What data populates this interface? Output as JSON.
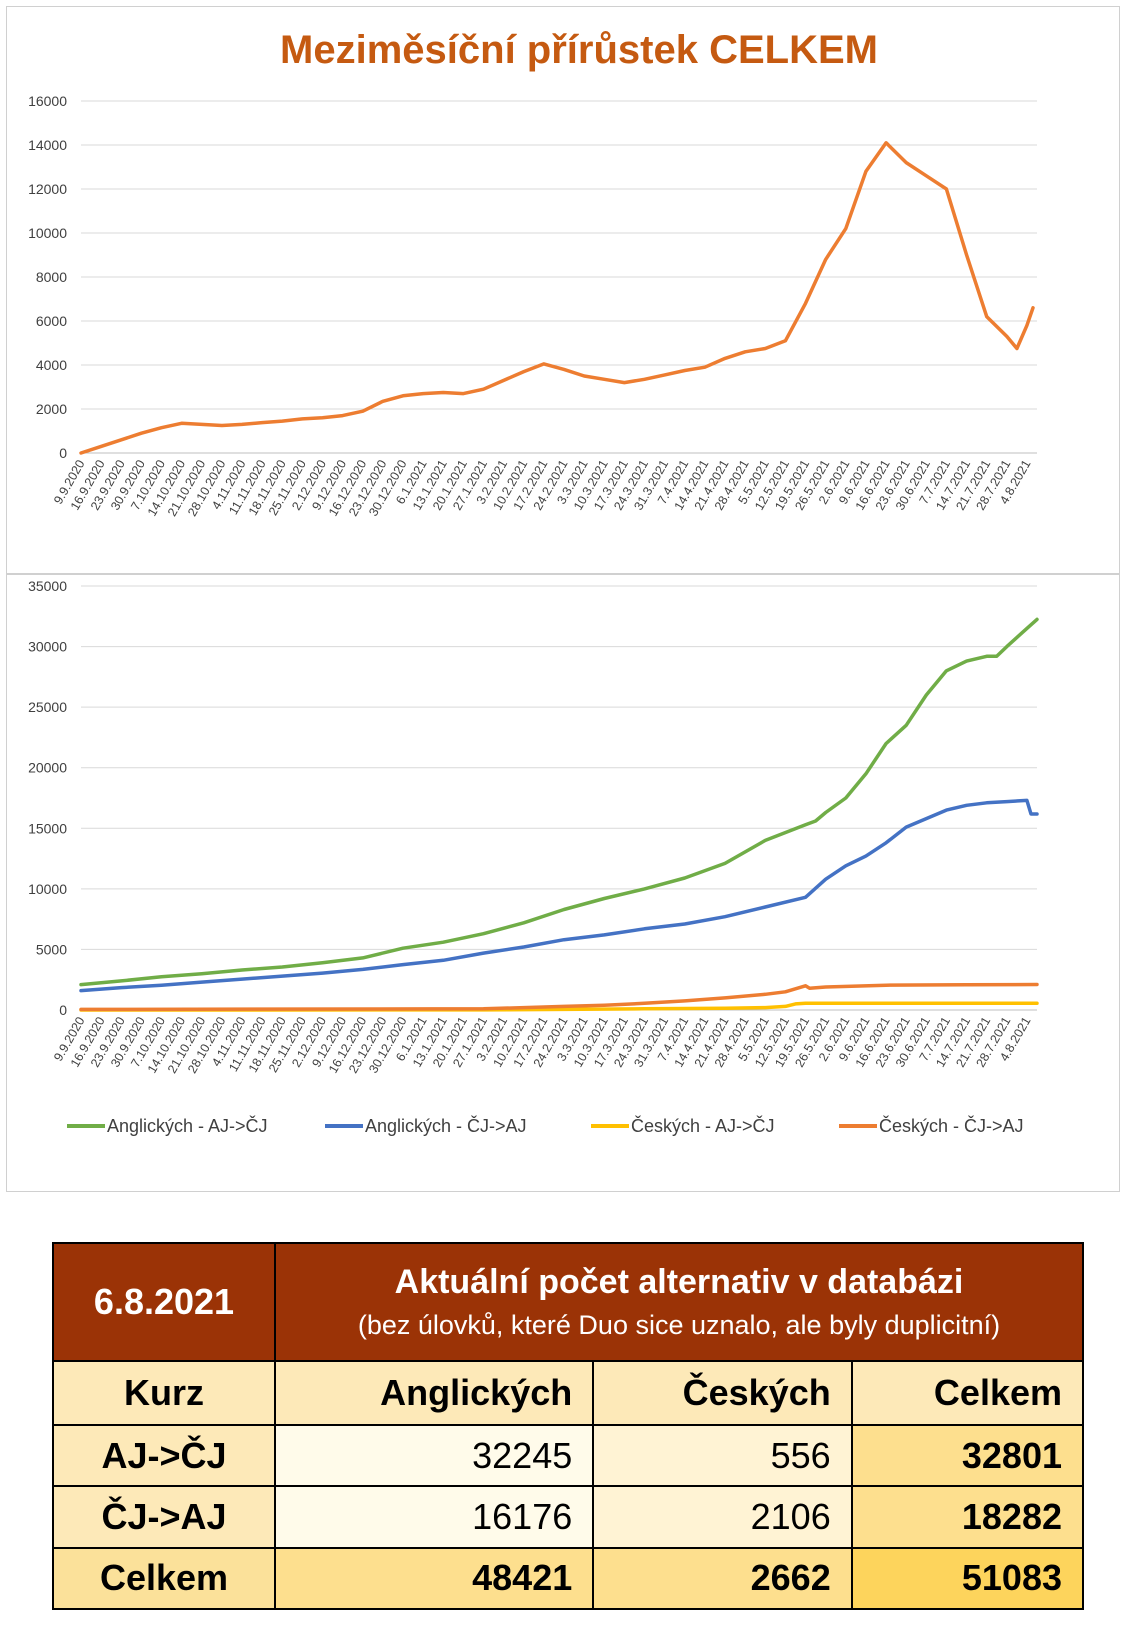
{
  "chart_data": [
    {
      "type": "line",
      "title": "Meziměsíční přírůstek CELKEM",
      "ylim": [
        0,
        16000
      ],
      "yticks": [
        0,
        2000,
        4000,
        6000,
        8000,
        10000,
        12000,
        14000,
        16000
      ],
      "grid": true,
      "x_tick_labels": [
        "9.9.2020",
        "16.9.2020",
        "23.9.2020",
        "30.9.2020",
        "7.10.2020",
        "14.10.2020",
        "21.10.2020",
        "28.10.2020",
        "4.11.2020",
        "11.11.2020",
        "18.11.2020",
        "25.11.2020",
        "2.12.2020",
        "9.12.2020",
        "16.12.2020",
        "23.12.2020",
        "30.12.2020",
        "6.1.2021",
        "13.1.2021",
        "20.1.2021",
        "27.1.2021",
        "3.2.2021",
        "10.2.2021",
        "17.2.2021",
        "24.2.2021",
        "3.3.2021",
        "10.3.2021",
        "17.3.2021",
        "24.3.2021",
        "31.3.2021",
        "7.4.2021",
        "14.4.2021",
        "21.4.2021",
        "28.4.2021",
        "5.5.2021",
        "12.5.2021",
        "19.5.2021",
        "26.5.2021",
        "2.6.2021",
        "9.6.2021",
        "16.6.2021",
        "23.6.2021",
        "30.6.2021",
        "7.7.2021",
        "14.7.2021",
        "21.7.2021",
        "28.7.2021",
        "4.8.2021"
      ],
      "series": [
        {
          "color": "#ed7d31",
          "points": [
            [
              0,
              0
            ],
            [
              1,
              300
            ],
            [
              2,
              600
            ],
            [
              3,
              900
            ],
            [
              4,
              1150
            ],
            [
              5,
              1350
            ],
            [
              6,
              1300
            ],
            [
              7,
              1250
            ],
            [
              8,
              1300
            ],
            [
              9,
              1380
            ],
            [
              10,
              1450
            ],
            [
              11,
              1550
            ],
            [
              12,
              1600
            ],
            [
              13,
              1700
            ],
            [
              14,
              1900
            ],
            [
              15,
              2350
            ],
            [
              16,
              2600
            ],
            [
              17,
              2700
            ],
            [
              18,
              2750
            ],
            [
              19,
              2700
            ],
            [
              20,
              2900
            ],
            [
              21,
              3300
            ],
            [
              22,
              3700
            ],
            [
              23,
              4050
            ],
            [
              24,
              3800
            ],
            [
              25,
              3500
            ],
            [
              26,
              3350
            ],
            [
              27,
              3200
            ],
            [
              28,
              3350
            ],
            [
              29,
              3550
            ],
            [
              30,
              3750
            ],
            [
              31,
              3900
            ],
            [
              32,
              4300
            ],
            [
              33,
              4600
            ],
            [
              34,
              4750
            ],
            [
              35,
              5100
            ],
            [
              36,
              6800
            ],
            [
              37,
              8800
            ],
            [
              38,
              10200
            ],
            [
              39,
              12800
            ],
            [
              40,
              14100
            ],
            [
              41,
              13200
            ],
            [
              42,
              12600
            ],
            [
              43,
              12000
            ],
            [
              44,
              9000
            ],
            [
              45,
              6200
            ],
            [
              46,
              5300
            ],
            [
              46.5,
              4750
            ],
            [
              47,
              5800
            ],
            [
              47.3,
              6600
            ]
          ]
        }
      ]
    },
    {
      "type": "line",
      "ylim": [
        0,
        35000
      ],
      "yticks": [
        0,
        5000,
        10000,
        15000,
        20000,
        25000,
        30000,
        35000
      ],
      "grid": true,
      "legend_position": "bottom",
      "x_tick_labels": [
        "9.9.2020",
        "16.9.2020",
        "23.9.2020",
        "30.9.2020",
        "7.10.2020",
        "14.10.2020",
        "21.10.2020",
        "28.10.2020",
        "4.11.2020",
        "11.11.2020",
        "18.11.2020",
        "25.11.2020",
        "2.12.2020",
        "9.12.2020",
        "16.12.2020",
        "23.12.2020",
        "30.12.2020",
        "6.1.2021",
        "13.1.2021",
        "20.1.2021",
        "27.1.2021",
        "3.2.2021",
        "10.2.2021",
        "17.2.2021",
        "24.2.2021",
        "3.3.2021",
        "10.3.2021",
        "17.3.2021",
        "24.3.2021",
        "31.3.2021",
        "7.4.2021",
        "14.4.2021",
        "21.4.2021",
        "28.4.2021",
        "5.5.2021",
        "12.5.2021",
        "19.5.2021",
        "26.5.2021",
        "2.6.2021",
        "9.6.2021",
        "16.6.2021",
        "23.6.2021",
        "30.6.2021",
        "7.7.2021",
        "14.7.2021",
        "21.7.2021",
        "28.7.2021",
        "4.8.2021"
      ],
      "series": [
        {
          "name": "Anglických - AJ->ČJ",
          "color": "#70ad47",
          "points": [
            [
              0,
              2100
            ],
            [
              2,
              2400
            ],
            [
              4,
              2750
            ],
            [
              6,
              3000
            ],
            [
              8,
              3300
            ],
            [
              10,
              3550
            ],
            [
              12,
              3900
            ],
            [
              14,
              4300
            ],
            [
              16,
              5100
            ],
            [
              18,
              5600
            ],
            [
              20,
              6300
            ],
            [
              22,
              7200
            ],
            [
              24,
              8300
            ],
            [
              26,
              9200
            ],
            [
              28,
              10000
            ],
            [
              30,
              10900
            ],
            [
              32,
              12100
            ],
            [
              34,
              14000
            ],
            [
              36,
              15300
            ],
            [
              36.5,
              15600
            ],
            [
              37,
              16300
            ],
            [
              38,
              17500
            ],
            [
              39,
              19500
            ],
            [
              40,
              22000
            ],
            [
              41,
              23500
            ],
            [
              42,
              26000
            ],
            [
              43,
              28000
            ],
            [
              44,
              28800
            ],
            [
              45,
              29200
            ],
            [
              45.5,
              29200
            ],
            [
              46,
              30000
            ],
            [
              47,
              31500
            ],
            [
              47.5,
              32245
            ]
          ]
        },
        {
          "name": "Anglických - ČJ->AJ",
          "color": "#4472c4",
          "points": [
            [
              0,
              1600
            ],
            [
              2,
              1850
            ],
            [
              4,
              2050
            ],
            [
              6,
              2300
            ],
            [
              8,
              2550
            ],
            [
              10,
              2800
            ],
            [
              12,
              3050
            ],
            [
              14,
              3350
            ],
            [
              16,
              3750
            ],
            [
              18,
              4100
            ],
            [
              20,
              4700
            ],
            [
              22,
              5200
            ],
            [
              24,
              5800
            ],
            [
              26,
              6200
            ],
            [
              28,
              6700
            ],
            [
              30,
              7100
            ],
            [
              32,
              7700
            ],
            [
              34,
              8500
            ],
            [
              36,
              9300
            ],
            [
              37,
              10800
            ],
            [
              38,
              11900
            ],
            [
              39,
              12700
            ],
            [
              40,
              13800
            ],
            [
              41,
              15100
            ],
            [
              42,
              15800
            ],
            [
              43,
              16500
            ],
            [
              44,
              16900
            ],
            [
              45,
              17100
            ],
            [
              46,
              17200
            ],
            [
              47,
              17300
            ],
            [
              47.2,
              16176
            ],
            [
              47.5,
              16176
            ]
          ]
        },
        {
          "name": "Českých - AJ->ČJ",
          "color": "#ffc000",
          "points": [
            [
              0,
              0
            ],
            [
              20,
              10
            ],
            [
              24,
              50
            ],
            [
              28,
              100
            ],
            [
              32,
              150
            ],
            [
              34,
              200
            ],
            [
              35,
              300
            ],
            [
              35.5,
              500
            ],
            [
              36,
              550
            ],
            [
              40,
              556
            ],
            [
              47.5,
              556
            ]
          ]
        },
        {
          "name": "Českých - ČJ->AJ",
          "color": "#ed7d31",
          "points": [
            [
              0,
              50
            ],
            [
              20,
              100
            ],
            [
              22,
              200
            ],
            [
              24,
              300
            ],
            [
              26,
              400
            ],
            [
              28,
              550
            ],
            [
              30,
              750
            ],
            [
              32,
              1000
            ],
            [
              34,
              1300
            ],
            [
              35,
              1500
            ],
            [
              36,
              2000
            ],
            [
              36.2,
              1800
            ],
            [
              37,
              1900
            ],
            [
              40,
              2050
            ],
            [
              44,
              2080
            ],
            [
              47.5,
              2106
            ]
          ]
        }
      ]
    }
  ],
  "table": {
    "date": "6.8.2021",
    "title": "Aktuální počet alternativ v databázi",
    "subtitle": "(bez úlovků, které Duo sice uznalo, ale byly duplicitní)",
    "headers": [
      "Kurz",
      "Anglických",
      "Českých",
      "Celkem"
    ],
    "rows": [
      {
        "label": "AJ->ČJ",
        "anglickych": "32245",
        "ceskych": "556",
        "celkem": "32801"
      },
      {
        "label": "ČJ->AJ",
        "anglickych": "16176",
        "ceskych": "2106",
        "celkem": "18282"
      }
    ],
    "total": {
      "label": "Celkem",
      "anglickych": "48421",
      "ceskych": "2662",
      "celkem": "51083"
    }
  }
}
